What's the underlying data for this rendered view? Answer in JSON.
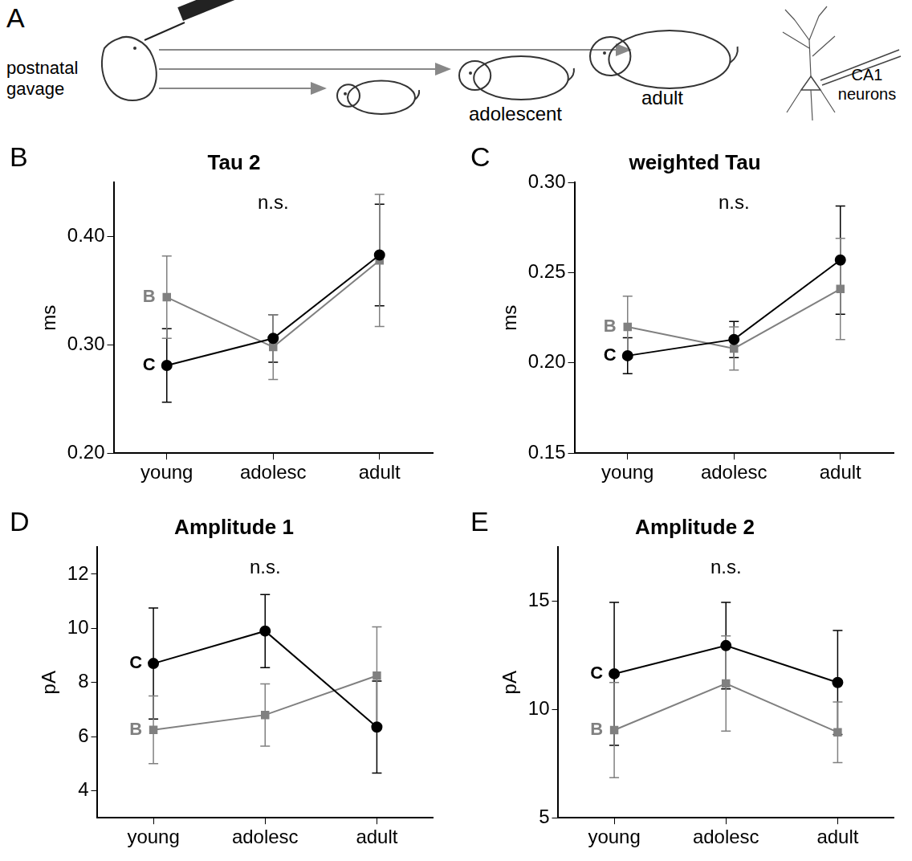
{
  "diagram": {
    "panel": "A",
    "gavage_label": "postnatal gavage",
    "adolescent_label": "adolescent",
    "adult_label": "adult",
    "neurons_label": "CA1 neurons"
  },
  "chart_data": [
    {
      "panel": "B",
      "type": "line",
      "title": "Tau 2",
      "y_label": "ms",
      "annotations": [
        "n.s."
      ],
      "categories": [
        "young",
        "adolesc",
        "adult"
      ],
      "ylim": [
        0.2,
        0.45
      ],
      "yticks": [
        {
          "value": 0.2,
          "label": "0.20"
        },
        {
          "value": 0.3,
          "label": "0.30"
        },
        {
          "value": 0.4,
          "label": "0.40"
        }
      ],
      "series": [
        {
          "name": "C",
          "color": "#000000",
          "marker": "circle",
          "values": [
            0.281,
            0.306,
            0.383
          ],
          "errors": [
            0.034,
            0.022,
            0.047
          ]
        },
        {
          "name": "B",
          "color": "#808080",
          "marker": "square",
          "values": [
            0.344,
            0.298,
            0.378
          ],
          "errors": [
            0.038,
            0.03,
            0.061
          ]
        }
      ]
    },
    {
      "panel": "C",
      "type": "line",
      "title": "weighted Tau",
      "y_label": "ms",
      "annotations": [
        "n.s."
      ],
      "categories": [
        "young",
        "adolesc",
        "adult"
      ],
      "ylim": [
        0.15,
        0.3
      ],
      "yticks": [
        {
          "value": 0.15,
          "label": "0.15"
        },
        {
          "value": 0.2,
          "label": "0.20"
        },
        {
          "value": 0.25,
          "label": "0.25"
        },
        {
          "value": 0.3,
          "label": "0.30"
        }
      ],
      "series": [
        {
          "name": "C",
          "color": "#000000",
          "marker": "circle",
          "values": [
            0.204,
            0.213,
            0.257
          ],
          "errors": [
            0.01,
            0.01,
            0.03
          ]
        },
        {
          "name": "B",
          "color": "#808080",
          "marker": "square",
          "values": [
            0.22,
            0.208,
            0.241
          ],
          "errors": [
            0.017,
            0.012,
            0.028
          ]
        }
      ]
    },
    {
      "panel": "D",
      "type": "line",
      "title": "Amplitude 1",
      "y_label": "pA",
      "annotations": [
        "n.s."
      ],
      "categories": [
        "young",
        "adolesc",
        "adult"
      ],
      "ylim": [
        3,
        13
      ],
      "yticks": [
        4,
        6,
        8,
        10,
        12
      ],
      "series": [
        {
          "name": "C",
          "color": "#000000",
          "marker": "circle",
          "values": [
            8.7,
            9.9,
            6.35
          ],
          "errors": [
            2.05,
            1.35,
            1.7
          ]
        },
        {
          "name": "B",
          "color": "#808080",
          "marker": "square",
          "values": [
            6.25,
            6.8,
            8.25
          ],
          "errors": [
            1.25,
            1.15,
            1.8
          ]
        }
      ]
    },
    {
      "panel": "E",
      "type": "line",
      "title": "Amplitude 2",
      "y_label": "pA",
      "annotations": [
        "n.s."
      ],
      "categories": [
        "young",
        "adolesc",
        "adult"
      ],
      "ylim": [
        5,
        17.5
      ],
      "yticks": [
        5,
        10,
        15
      ],
      "series": [
        {
          "name": "C",
          "color": "#000000",
          "marker": "circle",
          "values": [
            11.65,
            12.95,
            11.25
          ],
          "errors": [
            3.3,
            2.0,
            2.4
          ]
        },
        {
          "name": "B",
          "color": "#808080",
          "marker": "square",
          "values": [
            9.05,
            11.2,
            8.95
          ],
          "errors": [
            2.2,
            2.2,
            1.4
          ]
        }
      ]
    }
  ]
}
